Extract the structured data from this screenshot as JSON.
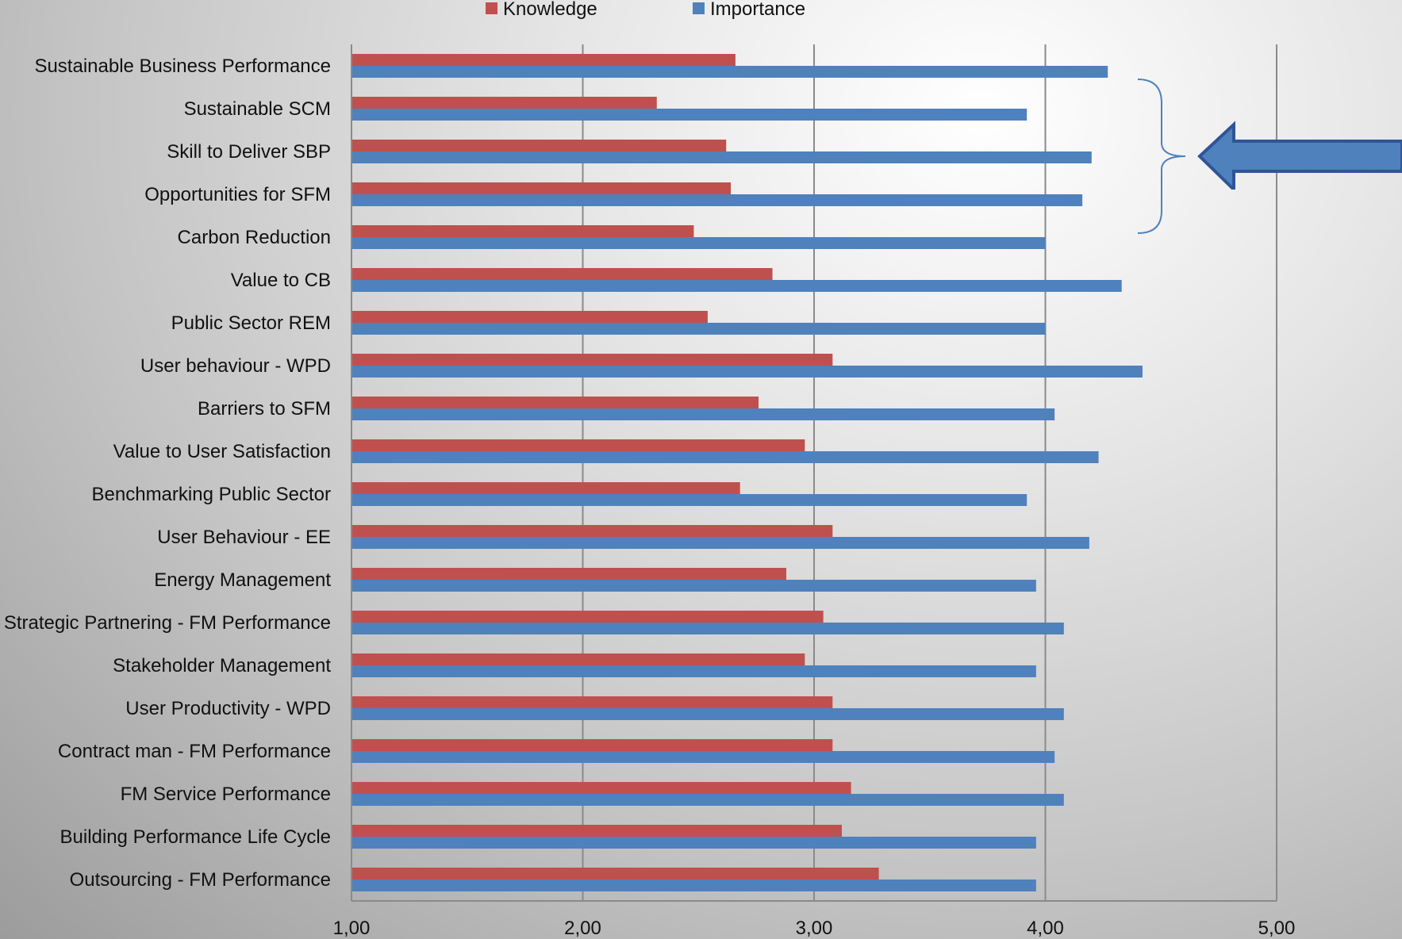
{
  "chart_data": {
    "type": "bar",
    "orientation": "horizontal",
    "categories": [
      "Sustainable Business Performance",
      "Sustainable SCM",
      "Skill to Deliver SBP",
      "Opportunities for SFM",
      "Carbon Reduction",
      "Value to CB",
      "Public Sector REM",
      "User behaviour - WPD",
      "Barriers to SFM",
      "Value to User Satisfaction",
      "Benchmarking Public Sector",
      "User Behaviour - EE",
      "Energy Management",
      "Strategic Partnering - FM Performance",
      "Stakeholder Management",
      "User Productivity - WPD",
      "Contract man - FM Performance",
      "FM Service Performance",
      "Building Performance Life Cycle",
      "Outsourcing - FM Performance"
    ],
    "series": [
      {
        "name": "Knowledge",
        "color": "#c0504d",
        "values": [
          2.66,
          2.32,
          2.62,
          2.64,
          2.48,
          2.82,
          2.54,
          3.08,
          2.76,
          2.96,
          2.68,
          3.08,
          2.88,
          3.04,
          2.96,
          3.08,
          3.08,
          3.16,
          3.12,
          3.28
        ]
      },
      {
        "name": "Importance",
        "color": "#4f81bd",
        "values": [
          4.27,
          3.92,
          4.2,
          4.16,
          4.0,
          4.33,
          4.0,
          4.42,
          4.04,
          4.23,
          3.92,
          4.19,
          3.96,
          4.08,
          3.96,
          4.08,
          4.04,
          4.08,
          3.96,
          3.96
        ]
      }
    ],
    "xlim": [
      1,
      5
    ],
    "xticks": [
      1,
      2,
      3,
      4,
      5
    ],
    "xtick_labels": [
      "1,00",
      "2,00",
      "3,00",
      "4,00",
      "5,00"
    ],
    "grid": true,
    "legend_position": "top",
    "annotations": [
      "bracket grouping the top rows",
      "large arrow pointing left at the bracket"
    ]
  }
}
